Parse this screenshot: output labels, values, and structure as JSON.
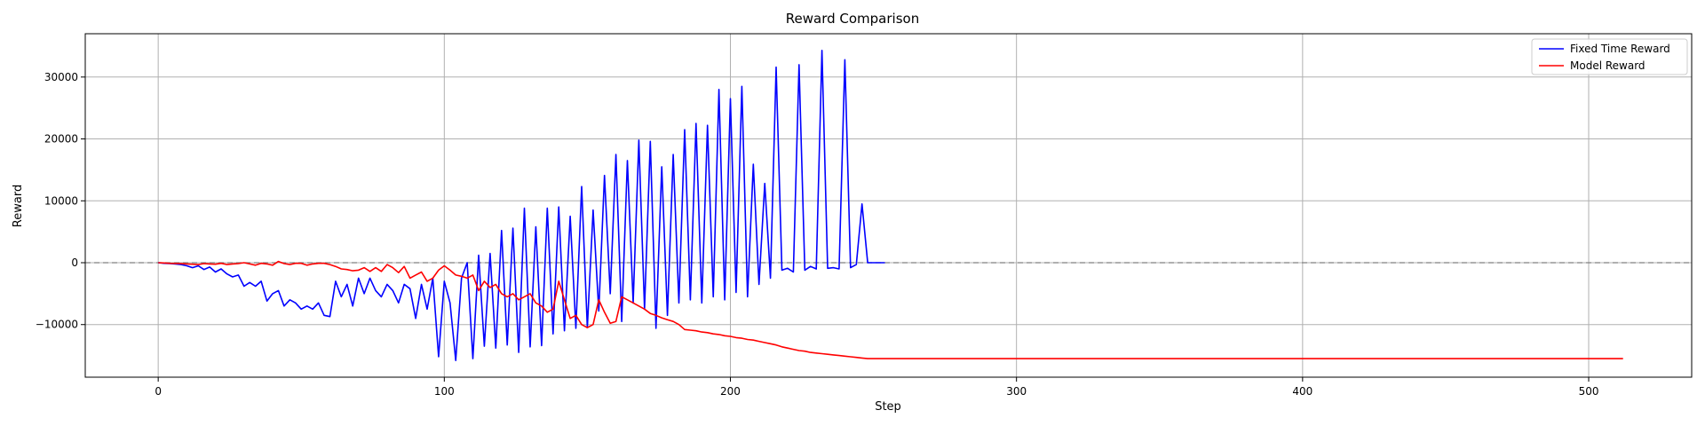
{
  "chart_data": {
    "type": "line",
    "title": "Reward Comparison",
    "xlabel": "Step",
    "ylabel": "Reward",
    "xlim": [
      -25.5,
      536
    ],
    "ylim": [
      -18500,
      37000
    ],
    "xticks": [
      0,
      100,
      200,
      300,
      400,
      500
    ],
    "yticks": [
      -10000,
      0,
      10000,
      20000,
      30000
    ],
    "grid": true,
    "legend_position": "top-right",
    "reference_line": {
      "y": 0,
      "style": "dashed",
      "color": "#808080"
    },
    "series": [
      {
        "name": "Fixed Time Reward",
        "color": "#0000ff",
        "points": [
          [
            0,
            0
          ],
          [
            2,
            -100
          ],
          [
            4,
            -150
          ],
          [
            6,
            -200
          ],
          [
            8,
            -300
          ],
          [
            10,
            -500
          ],
          [
            12,
            -800
          ],
          [
            14,
            -500
          ],
          [
            16,
            -1100
          ],
          [
            18,
            -700
          ],
          [
            20,
            -1500
          ],
          [
            22,
            -1000
          ],
          [
            24,
            -1800
          ],
          [
            26,
            -2300
          ],
          [
            28,
            -2000
          ],
          [
            30,
            -3800
          ],
          [
            32,
            -3200
          ],
          [
            34,
            -3800
          ],
          [
            36,
            -3000
          ],
          [
            38,
            -6200
          ],
          [
            40,
            -5000
          ],
          [
            42,
            -4500
          ],
          [
            44,
            -7000
          ],
          [
            46,
            -6000
          ],
          [
            48,
            -6500
          ],
          [
            50,
            -7500
          ],
          [
            52,
            -7000
          ],
          [
            54,
            -7500
          ],
          [
            56,
            -6500
          ],
          [
            58,
            -8500
          ],
          [
            60,
            -8700
          ],
          [
            62,
            -3000
          ],
          [
            64,
            -5500
          ],
          [
            66,
            -3500
          ],
          [
            68,
            -7000
          ],
          [
            70,
            -2500
          ],
          [
            72,
            -5000
          ],
          [
            74,
            -2500
          ],
          [
            76,
            -4500
          ],
          [
            78,
            -5500
          ],
          [
            80,
            -3500
          ],
          [
            82,
            -4500
          ],
          [
            84,
            -6500
          ],
          [
            86,
            -3500
          ],
          [
            88,
            -4200
          ],
          [
            90,
            -9000
          ],
          [
            92,
            -3500
          ],
          [
            94,
            -7500
          ],
          [
            96,
            -2500
          ],
          [
            98,
            -15200
          ],
          [
            100,
            -3000
          ],
          [
            102,
            -6500
          ],
          [
            104,
            -15800
          ],
          [
            106,
            -2500
          ],
          [
            108,
            0
          ],
          [
            110,
            -15500
          ],
          [
            112,
            1200
          ],
          [
            114,
            -13500
          ],
          [
            116,
            1500
          ],
          [
            118,
            -13800
          ],
          [
            120,
            5200
          ],
          [
            122,
            -13300
          ],
          [
            124,
            5600
          ],
          [
            126,
            -14500
          ],
          [
            128,
            8800
          ],
          [
            130,
            -13600
          ],
          [
            132,
            5800
          ],
          [
            134,
            -13400
          ],
          [
            136,
            8800
          ],
          [
            138,
            -11500
          ],
          [
            140,
            9000
          ],
          [
            142,
            -11000
          ],
          [
            144,
            7500
          ],
          [
            146,
            -10600
          ],
          [
            148,
            12300
          ],
          [
            150,
            -10500
          ],
          [
            152,
            8500
          ],
          [
            154,
            -7800
          ],
          [
            156,
            14100
          ],
          [
            158,
            -5000
          ],
          [
            160,
            17500
          ],
          [
            162,
            -9500
          ],
          [
            164,
            16500
          ],
          [
            166,
            -6500
          ],
          [
            168,
            19800
          ],
          [
            170,
            -7500
          ],
          [
            172,
            19600
          ],
          [
            174,
            -10600
          ],
          [
            176,
            15500
          ],
          [
            178,
            -8500
          ],
          [
            180,
            17500
          ],
          [
            182,
            -6500
          ],
          [
            184,
            21500
          ],
          [
            186,
            -6000
          ],
          [
            188,
            22500
          ],
          [
            190,
            -6500
          ],
          [
            192,
            22200
          ],
          [
            194,
            -5500
          ],
          [
            196,
            28000
          ],
          [
            198,
            -6000
          ],
          [
            200,
            26500
          ],
          [
            202,
            -4800
          ],
          [
            204,
            28500
          ],
          [
            206,
            -5500
          ],
          [
            208,
            15900
          ],
          [
            210,
            -3500
          ],
          [
            212,
            12800
          ],
          [
            214,
            -2500
          ],
          [
            216,
            31600
          ],
          [
            218,
            -1200
          ],
          [
            220,
            -900
          ],
          [
            222,
            -1500
          ],
          [
            224,
            32000
          ],
          [
            226,
            -1200
          ],
          [
            228,
            -600
          ],
          [
            230,
            -1000
          ],
          [
            232,
            34300
          ],
          [
            234,
            -900
          ],
          [
            236,
            -800
          ],
          [
            238,
            -1000
          ],
          [
            240,
            32800
          ],
          [
            242,
            -800
          ],
          [
            244,
            -300
          ],
          [
            246,
            9500
          ],
          [
            248,
            0
          ],
          [
            250,
            0
          ],
          [
            252,
            0
          ],
          [
            254,
            0
          ]
        ]
      },
      {
        "name": "Model Reward",
        "color": "#ff0000",
        "points": [
          [
            0,
            0
          ],
          [
            2,
            -50
          ],
          [
            4,
            -100
          ],
          [
            6,
            -120
          ],
          [
            8,
            -150
          ],
          [
            10,
            -200
          ],
          [
            12,
            -250
          ],
          [
            14,
            -300
          ],
          [
            16,
            -150
          ],
          [
            18,
            -200
          ],
          [
            20,
            -250
          ],
          [
            22,
            -100
          ],
          [
            24,
            -300
          ],
          [
            26,
            -200
          ],
          [
            28,
            -150
          ],
          [
            30,
            0
          ],
          [
            32,
            -200
          ],
          [
            34,
            -400
          ],
          [
            36,
            -100
          ],
          [
            38,
            -200
          ],
          [
            40,
            -400
          ],
          [
            42,
            200
          ],
          [
            44,
            -150
          ],
          [
            46,
            -300
          ],
          [
            48,
            -100
          ],
          [
            50,
            -100
          ],
          [
            52,
            -400
          ],
          [
            54,
            -200
          ],
          [
            56,
            -100
          ],
          [
            58,
            -100
          ],
          [
            60,
            -300
          ],
          [
            62,
            -600
          ],
          [
            64,
            -1000
          ],
          [
            66,
            -1100
          ],
          [
            68,
            -1300
          ],
          [
            70,
            -1200
          ],
          [
            72,
            -800
          ],
          [
            74,
            -1400
          ],
          [
            76,
            -800
          ],
          [
            78,
            -1400
          ],
          [
            80,
            -300
          ],
          [
            82,
            -800
          ],
          [
            84,
            -1600
          ],
          [
            86,
            -600
          ],
          [
            88,
            -2500
          ],
          [
            90,
            -2000
          ],
          [
            92,
            -1500
          ],
          [
            94,
            -3000
          ],
          [
            96,
            -2500
          ],
          [
            98,
            -1200
          ],
          [
            100,
            -500
          ],
          [
            102,
            -1200
          ],
          [
            104,
            -2000
          ],
          [
            106,
            -2200
          ],
          [
            108,
            -2500
          ],
          [
            110,
            -2000
          ],
          [
            112,
            -4500
          ],
          [
            114,
            -3000
          ],
          [
            116,
            -4000
          ],
          [
            118,
            -3500
          ],
          [
            120,
            -5000
          ],
          [
            122,
            -5500
          ],
          [
            124,
            -5000
          ],
          [
            126,
            -6000
          ],
          [
            128,
            -5500
          ],
          [
            130,
            -5000
          ],
          [
            132,
            -6500
          ],
          [
            134,
            -7000
          ],
          [
            136,
            -8000
          ],
          [
            138,
            -7500
          ],
          [
            140,
            -3000
          ],
          [
            142,
            -6000
          ],
          [
            144,
            -9000
          ],
          [
            146,
            -8500
          ],
          [
            148,
            -10000
          ],
          [
            150,
            -10500
          ],
          [
            152,
            -10000
          ],
          [
            154,
            -6000
          ],
          [
            156,
            -8000
          ],
          [
            158,
            -9800
          ],
          [
            160,
            -9500
          ],
          [
            162,
            -5500
          ],
          [
            164,
            -6000
          ],
          [
            166,
            -6500
          ],
          [
            168,
            -7000
          ],
          [
            170,
            -7500
          ],
          [
            172,
            -8200
          ],
          [
            174,
            -8500
          ],
          [
            176,
            -8900
          ],
          [
            178,
            -9200
          ],
          [
            180,
            -9500
          ],
          [
            182,
            -10000
          ],
          [
            184,
            -10800
          ],
          [
            186,
            -10900
          ],
          [
            188,
            -11000
          ],
          [
            190,
            -11200
          ],
          [
            192,
            -11300
          ],
          [
            194,
            -11500
          ],
          [
            196,
            -11600
          ],
          [
            198,
            -11800
          ],
          [
            200,
            -11900
          ],
          [
            202,
            -12100
          ],
          [
            204,
            -12200
          ],
          [
            206,
            -12400
          ],
          [
            208,
            -12500
          ],
          [
            210,
            -12700
          ],
          [
            212,
            -12900
          ],
          [
            214,
            -13100
          ],
          [
            216,
            -13300
          ],
          [
            218,
            -13600
          ],
          [
            220,
            -13800
          ],
          [
            222,
            -14000
          ],
          [
            224,
            -14200
          ],
          [
            226,
            -14300
          ],
          [
            228,
            -14500
          ],
          [
            230,
            -14600
          ],
          [
            232,
            -14700
          ],
          [
            234,
            -14800
          ],
          [
            236,
            -14900
          ],
          [
            238,
            -15000
          ],
          [
            240,
            -15100
          ],
          [
            242,
            -15200
          ],
          [
            244,
            -15300
          ],
          [
            246,
            -15400
          ],
          [
            248,
            -15500
          ],
          [
            250,
            -15500
          ],
          [
            254,
            -15500
          ],
          [
            260,
            -15500
          ],
          [
            300,
            -15500
          ],
          [
            350,
            -15500
          ],
          [
            400,
            -15500
          ],
          [
            450,
            -15500
          ],
          [
            500,
            -15500
          ],
          [
            512,
            -15500
          ]
        ]
      }
    ]
  }
}
